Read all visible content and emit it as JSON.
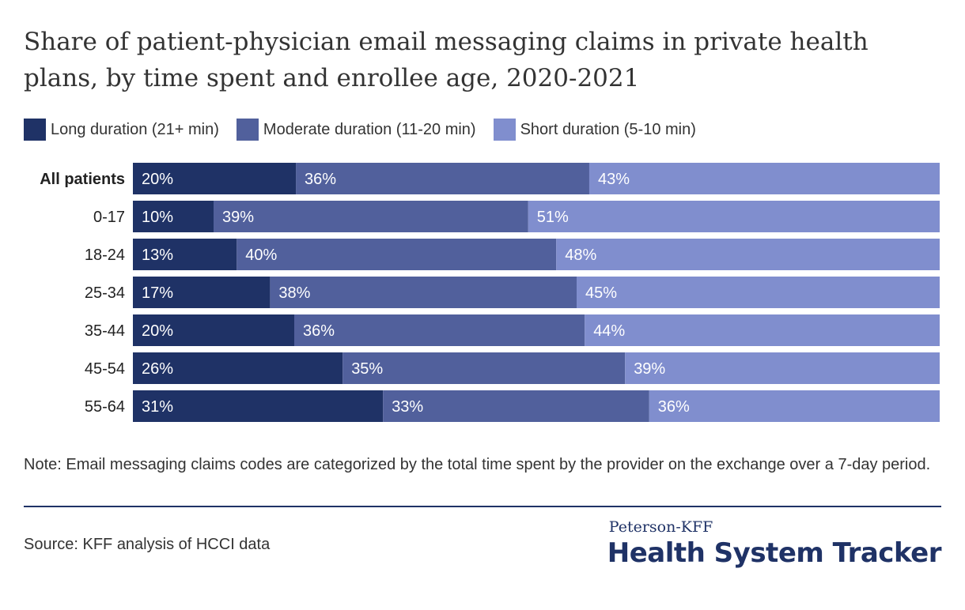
{
  "title": "Share of patient-physician email messaging claims in private health plans, by time spent and enrollee age, 2020-2021",
  "legend": [
    {
      "label": "Long duration (21+ min)",
      "color": "#1f3266"
    },
    {
      "label": "Moderate duration (11-20 min)",
      "color": "#51609c"
    },
    {
      "label": "Short duration (5-10 min)",
      "color": "#808ece"
    }
  ],
  "chart_data": {
    "type": "bar",
    "orientation": "horizontal",
    "stacked": true,
    "categories": [
      "All patients",
      "0-17",
      "18-24",
      "25-34",
      "35-44",
      "45-54",
      "55-64"
    ],
    "series": [
      {
        "name": "Long duration (21+ min)",
        "color": "#1f3266",
        "values": [
          20,
          10,
          13,
          17,
          20,
          26,
          31
        ]
      },
      {
        "name": "Moderate duration (11-20 min)",
        "color": "#51609c",
        "values": [
          36,
          39,
          40,
          38,
          36,
          35,
          33
        ]
      },
      {
        "name": "Short duration (5-10 min)",
        "color": "#808ece",
        "values": [
          43,
          51,
          48,
          45,
          44,
          39,
          36
        ]
      }
    ],
    "value_suffix": "%",
    "bold_categories": [
      "All patients"
    ]
  },
  "note": "Note: Email messaging claims codes are categorized by the total time spent by the provider on the exchange over a 7-day period.",
  "source": "Source: KFF analysis of HCCI data",
  "brand": {
    "top": "Peterson-KFF",
    "main": "Health System Tracker"
  }
}
